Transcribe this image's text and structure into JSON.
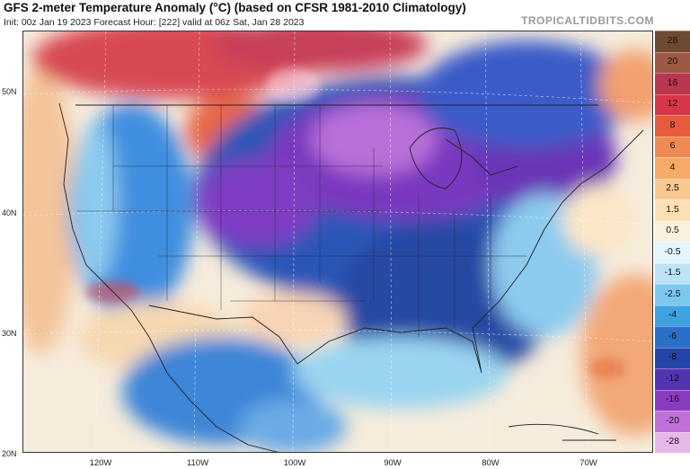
{
  "header": {
    "title": "GFS 2-meter Temperature Anomaly (°C) (based on CFSR 1981-2010 Climatology)",
    "subtitle": "Init: 00z Jan 19 2023   Forecast Hour: [222]   valid at 06z Sat, Jan 28 2023",
    "brand": "TROPICALTIDBITS.COM"
  },
  "map": {
    "lat_labels": [
      "50N",
      "40N",
      "30N",
      "20N"
    ],
    "lon_labels": [
      "120W",
      "110W",
      "100W",
      "90W",
      "80W",
      "70W"
    ]
  },
  "legend": {
    "labels": [
      "28",
      "20",
      "16",
      "12",
      "8",
      "6",
      "4",
      "2.5",
      "1.5",
      "0.5",
      "-0.5",
      "-1.5",
      "-2.5",
      "-4",
      "-6",
      "-8",
      "-12",
      "-16",
      "-20",
      "-28"
    ],
    "colors": [
      "#6e4a30",
      "#9c5a44",
      "#b8364e",
      "#d8344a",
      "#e85a3c",
      "#f08a52",
      "#f6ab6a",
      "#f8c890",
      "#fce0b4",
      "#fdf1dd",
      "#e6f4fb",
      "#bde4f6",
      "#7cc8ee",
      "#3fa2e0",
      "#2a70c8",
      "#2444a8",
      "#5234b0",
      "#8a3cc0",
      "#c070d8",
      "#e9b6ea"
    ]
  }
}
